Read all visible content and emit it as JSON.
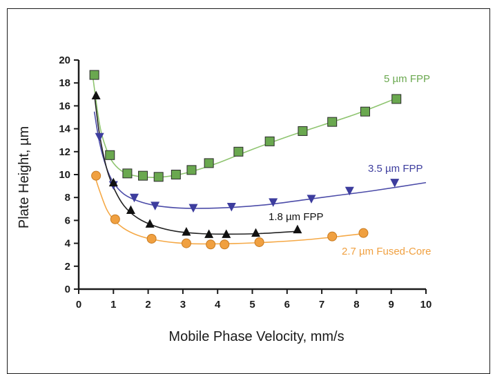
{
  "chart_data": {
    "type": "scatter",
    "title": "",
    "xlabel": "Mobile Phase Velocity, mm/s",
    "ylabel": "Plate Height, µm",
    "xlim": [
      0,
      10
    ],
    "ylim": [
      0,
      20
    ],
    "x_ticks": [
      "0",
      "1",
      "2",
      "3",
      "4",
      "5",
      "6",
      "7",
      "8",
      "9",
      "10"
    ],
    "y_ticks": [
      "0",
      "2",
      "4",
      "6",
      "8",
      "10",
      "12",
      "14",
      "16",
      "18",
      "20"
    ],
    "grid": false,
    "legend": "inline labels next to each curve",
    "series": [
      {
        "name": "5 µm FPP",
        "marker": "square",
        "color": "#6aa84f",
        "line_color": "#8ec46f",
        "x": [
          0.45,
          0.9,
          1.4,
          1.85,
          2.3,
          2.8,
          3.25,
          3.75,
          4.6,
          5.5,
          6.45,
          7.3,
          8.25,
          9.15
        ],
        "y": [
          18.7,
          11.7,
          10.1,
          9.9,
          9.8,
          10.0,
          10.4,
          11.0,
          12.0,
          12.9,
          13.8,
          14.6,
          15.5,
          16.6
        ],
        "fit": [
          [
            0.4,
            18.7
          ],
          [
            0.6,
            14.4
          ],
          [
            0.8,
            12.2
          ],
          [
            1.0,
            11.0
          ],
          [
            1.3,
            10.2
          ],
          [
            1.7,
            9.85
          ],
          [
            2.2,
            9.75
          ],
          [
            2.8,
            9.95
          ],
          [
            3.4,
            10.4
          ],
          [
            4.0,
            11.0
          ],
          [
            5.0,
            12.2
          ],
          [
            6.0,
            13.3
          ],
          [
            7.0,
            14.3
          ],
          [
            8.0,
            15.3
          ],
          [
            9.1,
            16.6
          ]
        ]
      },
      {
        "name": "3.5 µm FPP",
        "marker": "triangle-down",
        "color": "#3d3d9e",
        "line_color": "#4b4ba8",
        "x": [
          0.6,
          1.0,
          1.6,
          2.2,
          3.3,
          4.4,
          5.6,
          6.7,
          7.8,
          9.1
        ],
        "y": [
          13.3,
          9.1,
          8.0,
          7.3,
          7.1,
          7.2,
          7.6,
          7.9,
          8.6,
          9.3
        ],
        "fit": [
          [
            0.45,
            15.5
          ],
          [
            0.6,
            12.8
          ],
          [
            0.8,
            10.6
          ],
          [
            1.0,
            9.3
          ],
          [
            1.3,
            8.3
          ],
          [
            1.7,
            7.7
          ],
          [
            2.2,
            7.3
          ],
          [
            2.8,
            7.1
          ],
          [
            3.5,
            7.05
          ],
          [
            4.5,
            7.15
          ],
          [
            5.5,
            7.4
          ],
          [
            6.5,
            7.8
          ],
          [
            7.5,
            8.2
          ],
          [
            8.5,
            8.6
          ],
          [
            10.0,
            9.3
          ]
        ]
      },
      {
        "name": "1.8 µm FPP",
        "marker": "triangle-up",
        "color": "#111111",
        "line_color": "#222222",
        "x": [
          0.5,
          1.0,
          1.5,
          2.05,
          3.1,
          3.75,
          4.25,
          5.1,
          6.3
        ],
        "y": [
          16.9,
          9.3,
          6.9,
          5.7,
          5.0,
          4.8,
          4.8,
          4.9,
          5.2
        ],
        "fit": [
          [
            0.45,
            17.0
          ],
          [
            0.6,
            13.5
          ],
          [
            0.8,
            10.6
          ],
          [
            1.0,
            8.9
          ],
          [
            1.3,
            7.3
          ],
          [
            1.7,
            6.2
          ],
          [
            2.2,
            5.5
          ],
          [
            2.8,
            5.05
          ],
          [
            3.5,
            4.85
          ],
          [
            4.3,
            4.8
          ],
          [
            5.2,
            4.85
          ],
          [
            6.3,
            5.05
          ]
        ]
      },
      {
        "name": "2.7 µm Fused-Core",
        "marker": "circle",
        "color": "#f0a040",
        "line_color": "#f5a845",
        "x": [
          0.5,
          1.05,
          2.1,
          3.1,
          3.8,
          4.2,
          5.2,
          7.3,
          8.2
        ],
        "y": [
          9.9,
          6.1,
          4.4,
          4.0,
          3.9,
          3.9,
          4.1,
          4.6,
          4.9
        ],
        "fit": [
          [
            0.45,
            10.0
          ],
          [
            0.6,
            8.6
          ],
          [
            0.8,
            7.0
          ],
          [
            1.0,
            6.1
          ],
          [
            1.3,
            5.3
          ],
          [
            1.7,
            4.7
          ],
          [
            2.2,
            4.3
          ],
          [
            2.8,
            4.05
          ],
          [
            3.5,
            3.95
          ],
          [
            4.5,
            3.98
          ],
          [
            5.5,
            4.1
          ],
          [
            6.5,
            4.3
          ],
          [
            7.5,
            4.6
          ],
          [
            8.2,
            4.85
          ]
        ]
      }
    ]
  }
}
